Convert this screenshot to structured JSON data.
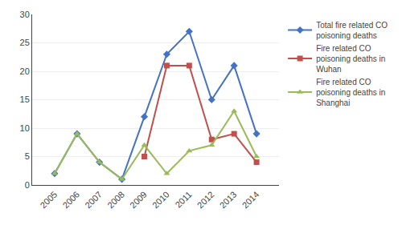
{
  "chart_data": {
    "type": "line",
    "x": [
      2005,
      2006,
      2007,
      2008,
      2009,
      2010,
      2011,
      2012,
      2013,
      2014
    ],
    "series": [
      {
        "name": "Total fire related CO\npoisoning deaths",
        "color": "#4472C4",
        "marker": "diamond",
        "values": [
          2,
          9,
          4,
          1,
          12,
          23,
          27,
          15,
          21,
          9
        ]
      },
      {
        "name": "Fire related CO\npoisoning deaths in\nWuhan",
        "color": "#C0504D",
        "marker": "square",
        "values": [
          null,
          null,
          null,
          null,
          5,
          21,
          21,
          8,
          9,
          4
        ]
      },
      {
        "name": "Fire related CO\npoisoning deaths in\nShanghai",
        "color": "#9BBB59",
        "marker": "triangle-up",
        "values": [
          2,
          9,
          4,
          1,
          7,
          2,
          6,
          7,
          13,
          5
        ]
      }
    ],
    "xlim": [
      2004,
      2015
    ],
    "xticks": [
      2005,
      2006,
      2007,
      2008,
      2009,
      2010,
      2011,
      2012,
      2013,
      2014
    ],
    "ylim": [
      0,
      30
    ],
    "yticks": [
      0,
      5,
      10,
      15,
      20,
      25,
      30
    ],
    "grid": true,
    "legend": "right"
  }
}
